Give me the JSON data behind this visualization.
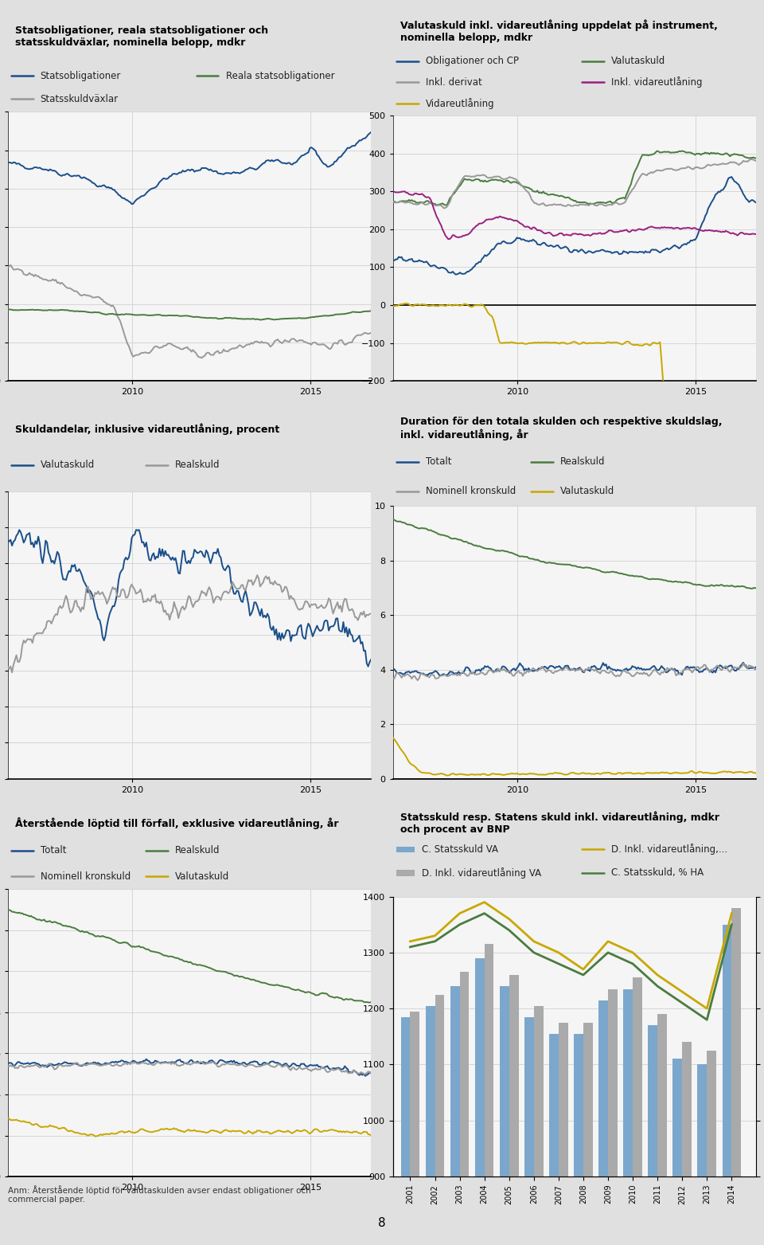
{
  "fig_bg": "#e0e0e0",
  "panel_bg": "#f0f0f0",
  "header_bg": "#c8c8c8",
  "chart_bg": "#f5f5f5",
  "panel1": {
    "title": "Statsobligationer, reala statsobligationer och\nstatsskuldväxlar, nominella belopp, mdkr",
    "legend_row1": [
      "Statsobligationer",
      "Reala statsobligationer"
    ],
    "legend_row2": [
      "Statsskuldväxlar"
    ],
    "colors": [
      "#1a4f8a",
      "#999999",
      "#4a7c3f"
    ],
    "ylim": [
      0,
      700
    ],
    "yticks": [
      0,
      100,
      200,
      300,
      400,
      500,
      600,
      700
    ],
    "xticks": [
      2010,
      2015
    ],
    "xmin": 2006.5,
    "xmax": 2016.7
  },
  "panel2": {
    "title": "Valutaskuld inkl. vidareutlåning uppdelat på instrument,\nnominella belopp, mdkr",
    "legend_row1": [
      "Obligationer och CP",
      "Valutaskuld"
    ],
    "legend_row2": [
      "Inkl. derivat",
      "Inkl. vidareutlåning"
    ],
    "legend_row3": [
      "Vidareutlåning"
    ],
    "colors": [
      "#1a4f8a",
      "#4a7c3f",
      "#999999",
      "#9b2080",
      "#c8a800"
    ],
    "ylim": [
      -200,
      500
    ],
    "yticks": [
      -200,
      -100,
      0,
      100,
      200,
      300,
      400,
      500
    ],
    "xticks": [
      2010,
      2015
    ],
    "xmin": 2006.5,
    "xmax": 2016.7
  },
  "panel3": {
    "title": "Skuldandelar, inklusive vidareutlåning, procent",
    "legend_row1": [
      "Valutaskuld",
      "Realskuld"
    ],
    "colors": [
      "#1a4f8a",
      "#999999"
    ],
    "ylim": [
      10,
      26
    ],
    "yticks": [
      10,
      12,
      14,
      16,
      18,
      20,
      22,
      24,
      26
    ],
    "xticks": [
      2010,
      2015
    ],
    "xmin": 2006.5,
    "xmax": 2016.7
  },
  "panel4": {
    "title": "Duration för den totala skulden och respektive skuldslag,\ninkl. vidareutlåning, år",
    "legend_row1": [
      "Totalt",
      "Realskuld"
    ],
    "legend_row2": [
      "Nominell kronskuld",
      "Valutaskuld"
    ],
    "colors": [
      "#1a4f8a",
      "#4a7c3f",
      "#999999",
      "#c8a800"
    ],
    "ylim": [
      0,
      10
    ],
    "yticks": [
      0,
      2,
      4,
      6,
      8,
      10
    ],
    "xticks": [
      2010,
      2015
    ],
    "xmin": 2006.5,
    "xmax": 2016.7
  },
  "panel5": {
    "title": "Återstående löptid till förfall, exklusive vidareutlåning, år",
    "legend_row1": [
      "Totalt",
      "Realskuld"
    ],
    "legend_row2": [
      "Nominell kronskuld",
      "Valutaskuld"
    ],
    "colors": [
      "#1a4f8a",
      "#4a7c3f",
      "#999999",
      "#c8a800"
    ],
    "ylim": [
      0,
      14
    ],
    "yticks": [
      0,
      2,
      4,
      6,
      8,
      10,
      12,
      14
    ],
    "xticks": [
      2010,
      2015
    ],
    "xmin": 2006.5,
    "xmax": 2016.7
  },
  "panel6": {
    "title": "Statsskuld resp. Statens skuld inkl. vidareutlåning, mdkr\noch procent av BNP",
    "bar_years": [
      2001,
      2002,
      2003,
      2004,
      2005,
      2006,
      2007,
      2008,
      2009,
      2010,
      2011,
      2012,
      2013,
      2014
    ],
    "bar_va": [
      1185,
      1205,
      1240,
      1290,
      1240,
      1185,
      1155,
      1155,
      1215,
      1235,
      1170,
      1110,
      1100,
      1350
    ],
    "bar_d_inkl": [
      1195,
      1225,
      1265,
      1315,
      1260,
      1205,
      1175,
      1175,
      1235,
      1255,
      1190,
      1140,
      1125,
      1380
    ],
    "line_c_pct": [
      51,
      52,
      55,
      57,
      54,
      50,
      48,
      46,
      50,
      48,
      44,
      41,
      38,
      55
    ],
    "line_d_pct": [
      52,
      53,
      57,
      59,
      56,
      52,
      50,
      47,
      52,
      50,
      46,
      43,
      40,
      57
    ],
    "bar_color_va": "#7ba7cc",
    "bar_color_d": "#aaaaaa",
    "line_color_d": "#c8a800",
    "line_color_c": "#4a7c3f",
    "left_ylim": [
      900,
      1400
    ],
    "right_ylim": [
      10,
      60
    ],
    "left_yticks": [
      900,
      1000,
      1100,
      1200,
      1300,
      1400
    ],
    "right_yticks": [
      10,
      20,
      30,
      40,
      50,
      60
    ],
    "anm": "Anm: Återstående löptid för valutaskulden avser endast obligationer och\ncommercial paper."
  }
}
